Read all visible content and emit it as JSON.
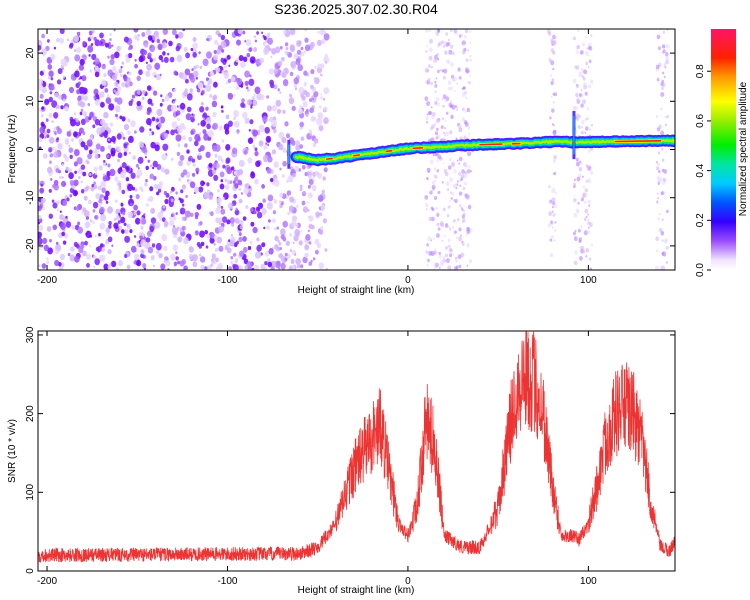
{
  "title": "S236.2025.307.02.30.R04",
  "chart_data": [
    {
      "type": "heatmap",
      "name": "spectrogram",
      "xlabel": "Height of straight line (km)",
      "ylabel": "Frequency (Hz)",
      "xlim": [
        -205,
        148
      ],
      "ylim": [
        -25,
        25
      ],
      "xticks": [
        -200,
        -100,
        0,
        100
      ],
      "yticks": [
        -20,
        -10,
        0,
        10,
        20
      ],
      "xtick_labels": [
        "-200",
        "-100",
        "0",
        "100"
      ],
      "ytick_labels": [
        "-20",
        "-10",
        "0",
        "10",
        "20"
      ],
      "colorbar": {
        "label": "Normalized spectral amplitude",
        "ticks": [
          0.0,
          0.2,
          0.4,
          0.6,
          0.8
        ],
        "tick_labels": [
          "0.0",
          "0.2",
          "0.4",
          "0.6",
          "0.8"
        ],
        "range": [
          0,
          0.97
        ]
      },
      "signal_track": {
        "description_points_x": [
          -62,
          -50,
          -40,
          -20,
          0,
          20,
          40,
          60,
          80,
          95,
          120,
          140,
          148
        ],
        "description_points_y": [
          -1.5,
          -2.2,
          -1.8,
          -0.8,
          0.2,
          0.6,
          1.0,
          1.2,
          1.6,
          1.5,
          1.7,
          1.8,
          1.8
        ]
      },
      "noise_bands_x": [
        [
          -205,
          -45
        ],
        [
          10,
          35
        ],
        [
          78,
          82
        ],
        [
          92,
          102
        ],
        [
          138,
          144
        ]
      ]
    },
    {
      "type": "line",
      "name": "snr",
      "xlabel": "Height of straight line (km)",
      "ylabel": "SNR (10 * v/v)",
      "xlim": [
        -205,
        148
      ],
      "ylim": [
        0,
        305
      ],
      "xticks": [
        -200,
        -100,
        0,
        100
      ],
      "yticks": [
        0,
        100,
        200,
        300
      ],
      "xtick_labels": [
        "-200",
        "-100",
        "0",
        "100"
      ],
      "ytick_labels": [
        "0",
        "100",
        "200",
        "300"
      ],
      "color": "#ee3333",
      "envelope": {
        "x": [
          -205,
          -60,
          -50,
          -40,
          -30,
          -20,
          -15,
          -10,
          -5,
          0,
          5,
          10,
          15,
          20,
          30,
          40,
          50,
          55,
          60,
          65,
          70,
          75,
          80,
          85,
          90,
          95,
          100,
          105,
          110,
          115,
          120,
          125,
          130,
          135,
          140,
          145,
          148
        ],
        "y": [
          20,
          22,
          30,
          60,
          130,
          170,
          185,
          120,
          60,
          45,
          80,
          190,
          160,
          45,
          30,
          30,
          80,
          160,
          230,
          250,
          240,
          200,
          110,
          45,
          45,
          40,
          60,
          110,
          170,
          200,
          210,
          200,
          160,
          80,
          30,
          25,
          40
        ]
      }
    }
  ]
}
